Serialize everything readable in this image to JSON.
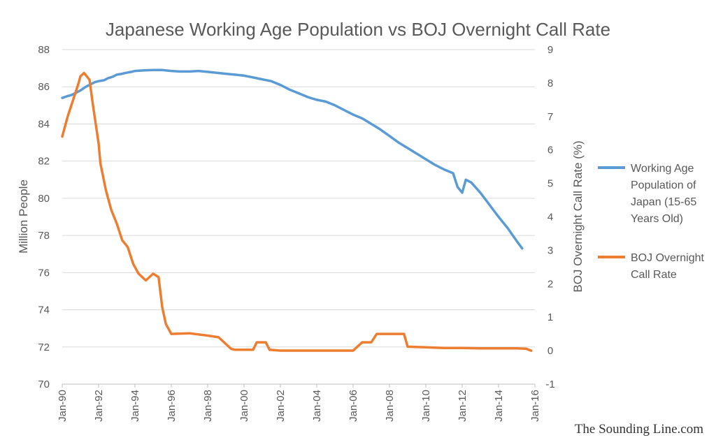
{
  "chart_data": {
    "type": "line",
    "title": "Japanese Working Age Population vs BOJ Overnight Call Rate",
    "xlabel": "",
    "x_ticks": [
      "Jan-90",
      "Jan-92",
      "Jan-94",
      "Jan-96",
      "Jan-98",
      "Jan-00",
      "Jan-02",
      "Jan-04",
      "Jan-06",
      "Jan-08",
      "Jan-10",
      "Jan-12",
      "Jan-14",
      "Jan-16"
    ],
    "xlim": [
      1990.0,
      2016.0
    ],
    "y_left": {
      "label": "Million People",
      "ylim": [
        70,
        88
      ],
      "ticks": [
        "70",
        "72",
        "74",
        "76",
        "78",
        "80",
        "82",
        "84",
        "86",
        "88"
      ]
    },
    "y_right": {
      "label": "BOJ Overnight Call Rate (%)",
      "ylim": [
        -1,
        9
      ],
      "ticks": [
        "-1",
        "0",
        "1",
        "2",
        "3",
        "4",
        "5",
        "6",
        "7",
        "8",
        "9"
      ]
    },
    "grid": true,
    "legend_position": "right",
    "series": [
      {
        "name": "Working Age Population of Japan (15-65 Years Old)",
        "axis": "left",
        "color": "#5b9bd5",
        "points": [
          [
            1990.0,
            85.4
          ],
          [
            1990.3,
            85.5
          ],
          [
            1990.5,
            85.55
          ],
          [
            1990.8,
            85.7
          ],
          [
            1991.0,
            85.8
          ],
          [
            1991.3,
            86.0
          ],
          [
            1991.5,
            86.1
          ],
          [
            1991.8,
            86.25
          ],
          [
            1992.0,
            86.3
          ],
          [
            1992.3,
            86.35
          ],
          [
            1992.5,
            86.45
          ],
          [
            1992.8,
            86.55
          ],
          [
            1993.0,
            86.65
          ],
          [
            1993.3,
            86.7
          ],
          [
            1993.5,
            86.75
          ],
          [
            1993.8,
            86.8
          ],
          [
            1994.0,
            86.85
          ],
          [
            1994.5,
            86.88
          ],
          [
            1995.0,
            86.9
          ],
          [
            1995.5,
            86.9
          ],
          [
            1996.0,
            86.85
          ],
          [
            1996.5,
            86.82
          ],
          [
            1997.0,
            86.82
          ],
          [
            1997.5,
            86.85
          ],
          [
            1998.0,
            86.8
          ],
          [
            1998.5,
            86.75
          ],
          [
            1999.0,
            86.7
          ],
          [
            1999.5,
            86.65
          ],
          [
            2000.0,
            86.6
          ],
          [
            2000.5,
            86.5
          ],
          [
            2001.0,
            86.4
          ],
          [
            2001.5,
            86.3
          ],
          [
            2002.0,
            86.1
          ],
          [
            2002.5,
            85.85
          ],
          [
            2003.0,
            85.65
          ],
          [
            2003.5,
            85.45
          ],
          [
            2004.0,
            85.3
          ],
          [
            2004.5,
            85.2
          ],
          [
            2005.0,
            85.0
          ],
          [
            2005.5,
            84.75
          ],
          [
            2006.0,
            84.5
          ],
          [
            2006.5,
            84.3
          ],
          [
            2007.0,
            84.0
          ],
          [
            2007.5,
            83.7
          ],
          [
            2008.0,
            83.35
          ],
          [
            2008.5,
            83.0
          ],
          [
            2009.0,
            82.7
          ],
          [
            2009.5,
            82.4
          ],
          [
            2010.0,
            82.1
          ],
          [
            2010.5,
            81.8
          ],
          [
            2011.0,
            81.55
          ],
          [
            2011.5,
            81.35
          ],
          [
            2011.75,
            80.6
          ],
          [
            2012.0,
            80.3
          ],
          [
            2012.2,
            81.0
          ],
          [
            2012.5,
            80.85
          ],
          [
            2013.0,
            80.3
          ],
          [
            2013.5,
            79.65
          ],
          [
            2014.0,
            79.0
          ],
          [
            2014.5,
            78.4
          ],
          [
            2015.0,
            77.7
          ],
          [
            2015.3,
            77.3
          ]
        ]
      },
      {
        "name": "BOJ Overnight Call Rate",
        "axis": "right",
        "color": "#ed7d31",
        "points": [
          [
            1990.0,
            6.4
          ],
          [
            1990.3,
            7.0
          ],
          [
            1990.6,
            7.5
          ],
          [
            1990.9,
            8.0
          ],
          [
            1991.0,
            8.2
          ],
          [
            1991.2,
            8.3
          ],
          [
            1991.5,
            8.1
          ],
          [
            1991.7,
            7.3
          ],
          [
            1992.0,
            6.2
          ],
          [
            1992.1,
            5.6
          ],
          [
            1992.4,
            4.8
          ],
          [
            1992.7,
            4.2
          ],
          [
            1993.0,
            3.8
          ],
          [
            1993.3,
            3.3
          ],
          [
            1993.6,
            3.1
          ],
          [
            1993.9,
            2.6
          ],
          [
            1994.2,
            2.3
          ],
          [
            1994.6,
            2.1
          ],
          [
            1995.0,
            2.3
          ],
          [
            1995.3,
            2.2
          ],
          [
            1995.5,
            1.3
          ],
          [
            1995.7,
            0.8
          ],
          [
            1996.0,
            0.5
          ],
          [
            1997.0,
            0.52
          ],
          [
            1998.0,
            0.45
          ],
          [
            1998.6,
            0.4
          ],
          [
            1999.0,
            0.2
          ],
          [
            1999.3,
            0.05
          ],
          [
            1999.5,
            0.03
          ],
          [
            2000.5,
            0.03
          ],
          [
            2000.7,
            0.25
          ],
          [
            2001.2,
            0.25
          ],
          [
            2001.4,
            0.03
          ],
          [
            2002.0,
            0.002
          ],
          [
            2006.0,
            0.002
          ],
          [
            2006.5,
            0.25
          ],
          [
            2007.0,
            0.25
          ],
          [
            2007.3,
            0.5
          ],
          [
            2008.8,
            0.5
          ],
          [
            2009.0,
            0.12
          ],
          [
            2010.0,
            0.1
          ],
          [
            2011.0,
            0.08
          ],
          [
            2012.0,
            0.08
          ],
          [
            2013.0,
            0.07
          ],
          [
            2014.0,
            0.07
          ],
          [
            2015.0,
            0.07
          ],
          [
            2015.5,
            0.06
          ],
          [
            2015.8,
            0.0
          ]
        ]
      }
    ]
  },
  "legend": [
    {
      "lines": [
        "Working Age",
        "Population of",
        "Japan (15-65",
        "Years Old)"
      ],
      "color": "#5b9bd5"
    },
    {
      "lines": [
        "BOJ Overnight",
        "Call Rate"
      ],
      "color": "#ed7d31"
    }
  ],
  "credit": "The Sounding Line.com"
}
